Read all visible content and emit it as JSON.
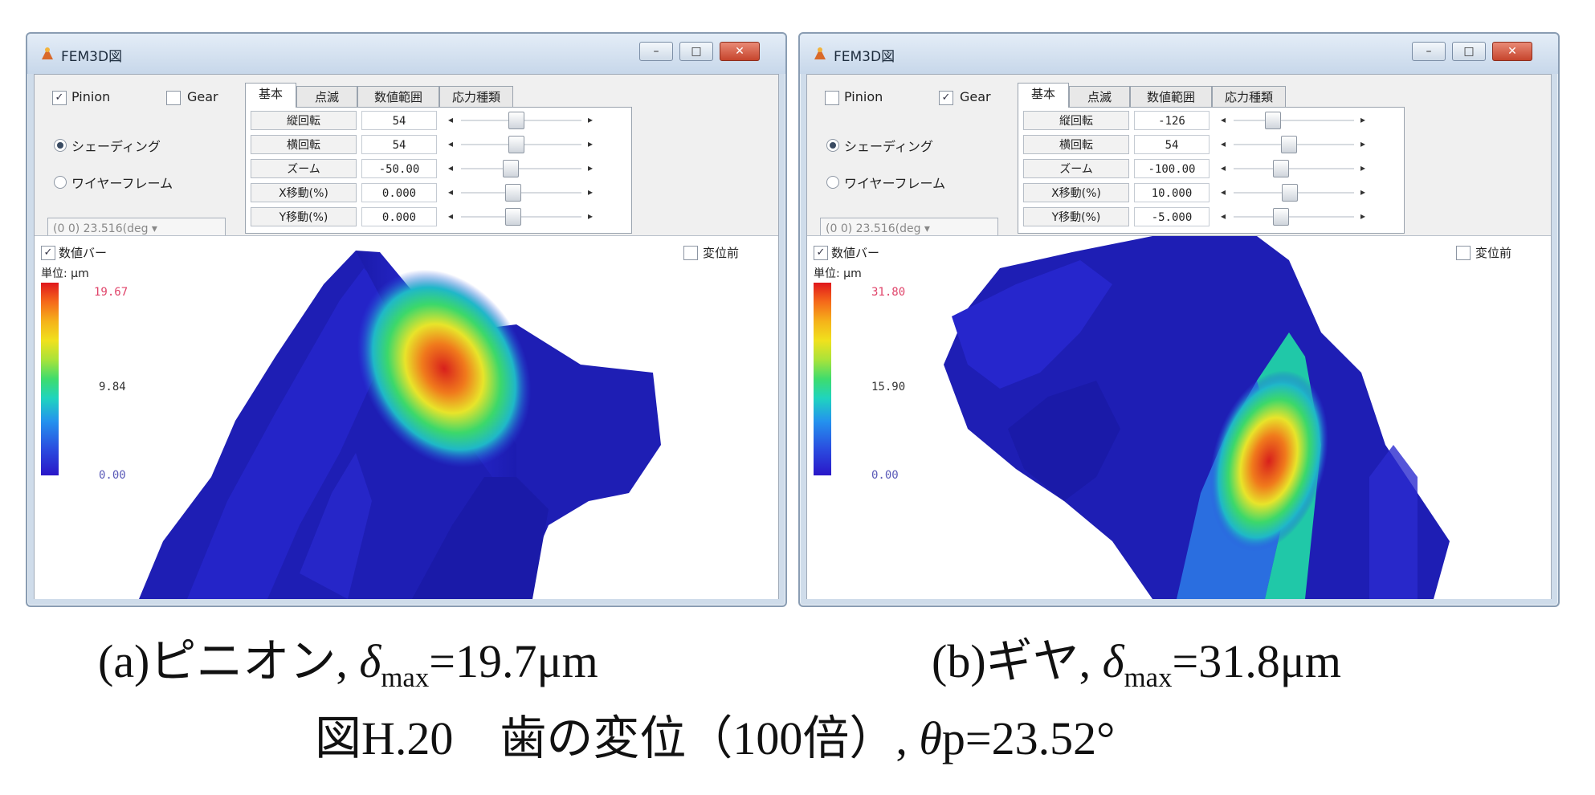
{
  "windows": [
    {
      "title": "FEM3D図",
      "checkboxes": {
        "pinion_label": "Pinion",
        "pinion_checked": true,
        "gear_label": "Gear",
        "gear_checked": false
      },
      "render_mode": {
        "shading_label": "シェーディング",
        "wireframe_label": "ワイヤーフレーム",
        "selected": "shading"
      },
      "combo_value": "(0 0)    23.516(deg ▾",
      "tabs": [
        "基本",
        "点滅",
        "数値範囲",
        "応力種類"
      ],
      "active_tab": 0,
      "params": [
        {
          "label": "縦回転",
          "value": "54",
          "slider_pos": 0.45
        },
        {
          "label": "横回転",
          "value": "54",
          "slider_pos": 0.45
        },
        {
          "label": "ズーム",
          "value": "-50.00",
          "slider_pos": 0.4
        },
        {
          "label": "X移動(%)",
          "value": "0.000",
          "slider_pos": 0.42
        },
        {
          "label": "Y移動(%)",
          "value": "0.000",
          "slider_pos": 0.42
        }
      ],
      "numeric_bar_label": "数値バー",
      "numeric_bar_checked": true,
      "before_disp_label": "変位前",
      "before_disp_checked": false,
      "unit_label": "単位: μm",
      "legend": {
        "max": "19.67",
        "mid": "9.84",
        "min": "0.00"
      },
      "colors": {
        "max": "#e0446a",
        "mid": "#333333",
        "min": "#5a5ab8"
      }
    },
    {
      "title": "FEM3D図",
      "checkboxes": {
        "pinion_label": "Pinion",
        "pinion_checked": false,
        "gear_label": "Gear",
        "gear_checked": true
      },
      "render_mode": {
        "shading_label": "シェーディング",
        "wireframe_label": "ワイヤーフレーム",
        "selected": "shading"
      },
      "combo_value": "(0 0)    23.516(deg ▾",
      "tabs": [
        "基本",
        "点滅",
        "数値範囲",
        "応力種類"
      ],
      "active_tab": 0,
      "params": [
        {
          "label": "縦回転",
          "value": "-126",
          "slider_pos": 0.3
        },
        {
          "label": "横回転",
          "value": "54",
          "slider_pos": 0.45
        },
        {
          "label": "ズーム",
          "value": "-100.00",
          "slider_pos": 0.38
        },
        {
          "label": "X移動(%)",
          "value": "10.000",
          "slider_pos": 0.46
        },
        {
          "label": "Y移動(%)",
          "value": "-5.000",
          "slider_pos": 0.38
        }
      ],
      "numeric_bar_label": "数値バー",
      "numeric_bar_checked": true,
      "before_disp_label": "変位前",
      "before_disp_checked": false,
      "unit_label": "単位: μm",
      "legend": {
        "max": "31.80",
        "mid": "15.90",
        "min": "0.00"
      },
      "colors": {
        "max": "#e0446a",
        "mid": "#333333",
        "min": "#5a5ab8"
      }
    }
  ],
  "captions": {
    "a_prefix": "(a)ピニオン,",
    "a_delta": "δ",
    "a_sub": "max",
    "a_value": "=19.7μm",
    "b_prefix": "(b)ギヤ,",
    "b_delta": "δ",
    "b_sub": "max",
    "b_value": "=31.8μm",
    "figure_title": "図H.20　歯の変位（100倍）,",
    "theta": "θ",
    "theta_rest": "p=23.52°"
  }
}
